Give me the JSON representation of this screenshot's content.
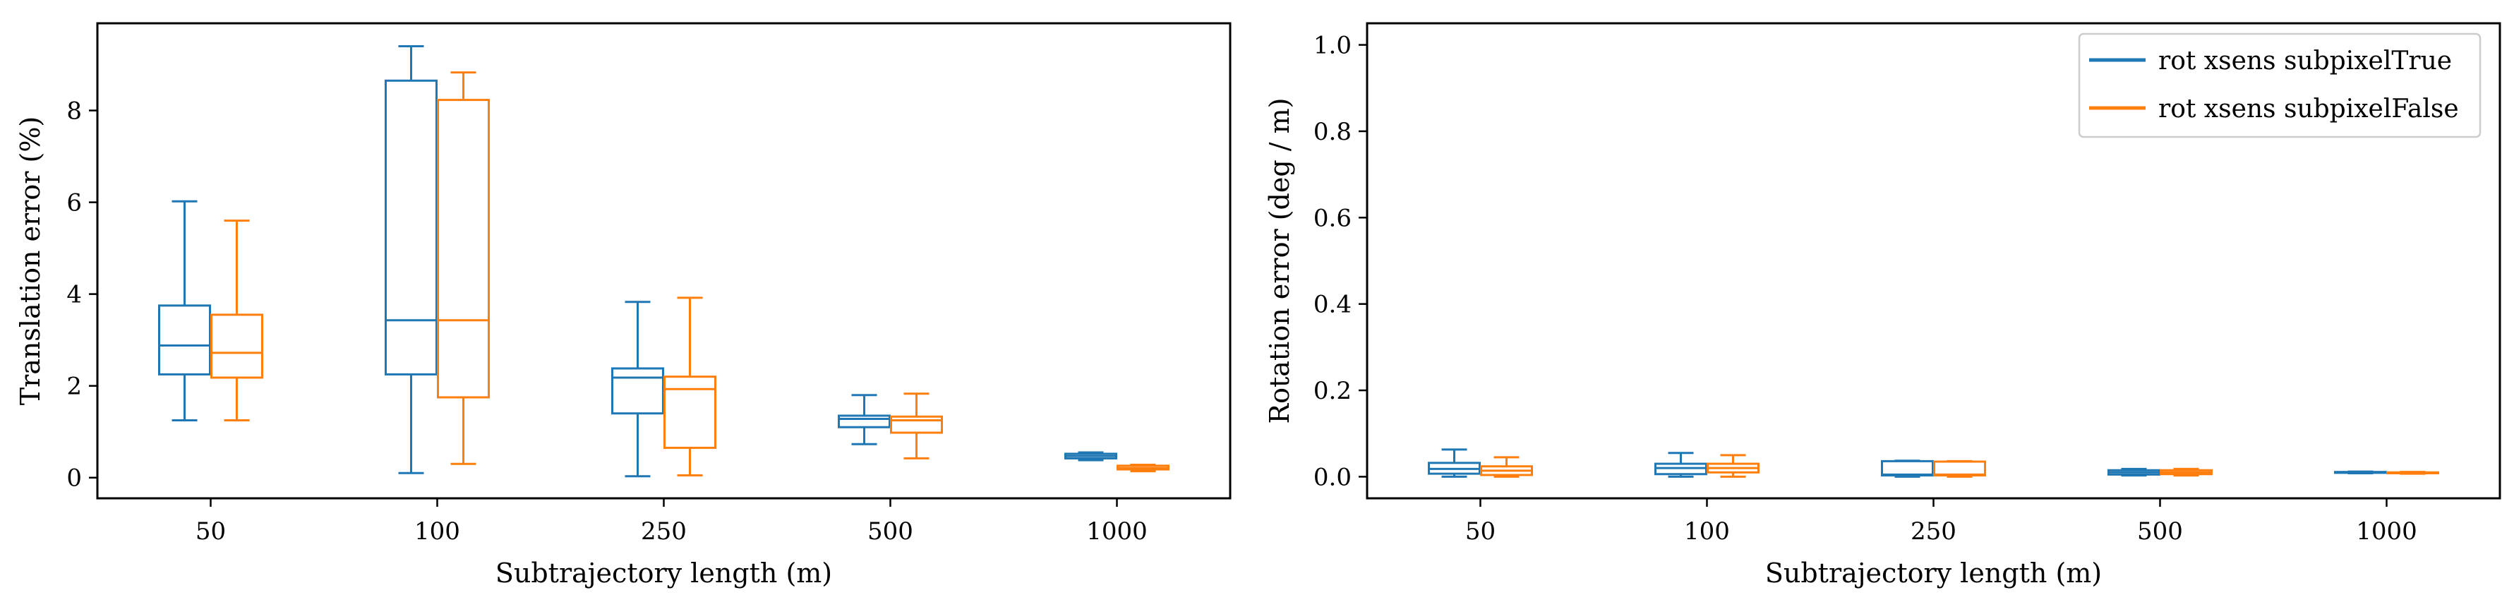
{
  "colors": {
    "series_true": "#1f77b4",
    "series_false": "#ff7f0e",
    "axis": "#000000",
    "background": "#ffffff"
  },
  "legend": {
    "placement": "top-right",
    "entries": [
      "rot xsens subpixelTrue",
      "rot xsens subpixelFalse"
    ]
  },
  "chart_data": [
    {
      "type": "box",
      "title": "",
      "xlabel": "Subtrajectory length (m)",
      "ylabel": "Translation error (%)",
      "categories": [
        "50",
        "100",
        "250",
        "500",
        "1000"
      ],
      "ylim": [
        -0.45,
        9.9
      ],
      "yticks": [
        0,
        2,
        4,
        6,
        8
      ],
      "grid": false,
      "series": [
        {
          "name": "rot xsens subpixelTrue",
          "boxes": [
            {
              "whislo": 1.25,
              "q1": 2.25,
              "med": 2.88,
              "q3": 3.75,
              "whishi": 6.02
            },
            {
              "whislo": 0.1,
              "q1": 2.25,
              "med": 3.43,
              "q3": 8.65,
              "whishi": 9.4
            },
            {
              "whislo": 0.03,
              "q1": 1.4,
              "med": 2.18,
              "q3": 2.38,
              "whishi": 3.83
            },
            {
              "whislo": 0.73,
              "q1": 1.1,
              "med": 1.28,
              "q3": 1.35,
              "whishi": 1.8
            },
            {
              "whislo": 0.38,
              "q1": 0.42,
              "med": 0.47,
              "q3": 0.52,
              "whishi": 0.55
            }
          ]
        },
        {
          "name": "rot xsens subpixelFalse",
          "boxes": [
            {
              "whislo": 1.25,
              "q1": 2.18,
              "med": 2.72,
              "q3": 3.55,
              "whishi": 5.6
            },
            {
              "whislo": 0.3,
              "q1": 1.75,
              "med": 3.43,
              "q3": 8.23,
              "whishi": 8.83
            },
            {
              "whislo": 0.05,
              "q1": 0.65,
              "med": 1.93,
              "q3": 2.2,
              "whishi": 3.92
            },
            {
              "whislo": 0.42,
              "q1": 0.98,
              "med": 1.25,
              "q3": 1.33,
              "whishi": 1.83
            },
            {
              "whislo": 0.14,
              "q1": 0.18,
              "med": 0.21,
              "q3": 0.26,
              "whishi": 0.28
            }
          ]
        }
      ]
    },
    {
      "type": "box",
      "title": "",
      "xlabel": "Subtrajectory length (m)",
      "ylabel": "Rotation error (deg / m)",
      "categories": [
        "50",
        "100",
        "250",
        "500",
        "1000"
      ],
      "ylim": [
        -0.05,
        1.05
      ],
      "yticks": [
        0.0,
        0.2,
        0.4,
        0.6,
        0.8,
        1.0
      ],
      "ytick_labels": [
        "0.0",
        "0.2",
        "0.4",
        "0.6",
        "0.8",
        "1.0"
      ],
      "grid": false,
      "series": [
        {
          "name": "rot xsens subpixelTrue",
          "boxes": [
            {
              "whislo": 0.0,
              "q1": 0.007,
              "med": 0.018,
              "q3": 0.032,
              "whishi": 0.063
            },
            {
              "whislo": 0.0,
              "q1": 0.006,
              "med": 0.02,
              "q3": 0.03,
              "whishi": 0.055
            },
            {
              "whislo": 0.0,
              "q1": 0.003,
              "med": 0.005,
              "q3": 0.036,
              "whishi": 0.037
            },
            {
              "whislo": 0.003,
              "q1": 0.005,
              "med": 0.01,
              "q3": 0.015,
              "whishi": 0.018
            },
            {
              "whislo": 0.008,
              "q1": 0.009,
              "med": 0.01,
              "q3": 0.011,
              "whishi": 0.012
            }
          ]
        },
        {
          "name": "rot xsens subpixelFalse",
          "boxes": [
            {
              "whislo": 0.0,
              "q1": 0.004,
              "med": 0.014,
              "q3": 0.024,
              "whishi": 0.045
            },
            {
              "whislo": 0.0,
              "q1": 0.01,
              "med": 0.02,
              "q3": 0.03,
              "whishi": 0.05
            },
            {
              "whislo": 0.0,
              "q1": 0.003,
              "med": 0.005,
              "q3": 0.035,
              "whishi": 0.036
            },
            {
              "whislo": 0.003,
              "q1": 0.006,
              "med": 0.01,
              "q3": 0.015,
              "whishi": 0.018
            },
            {
              "whislo": 0.007,
              "q1": 0.008,
              "med": 0.009,
              "q3": 0.01,
              "whishi": 0.011
            }
          ]
        }
      ]
    }
  ]
}
